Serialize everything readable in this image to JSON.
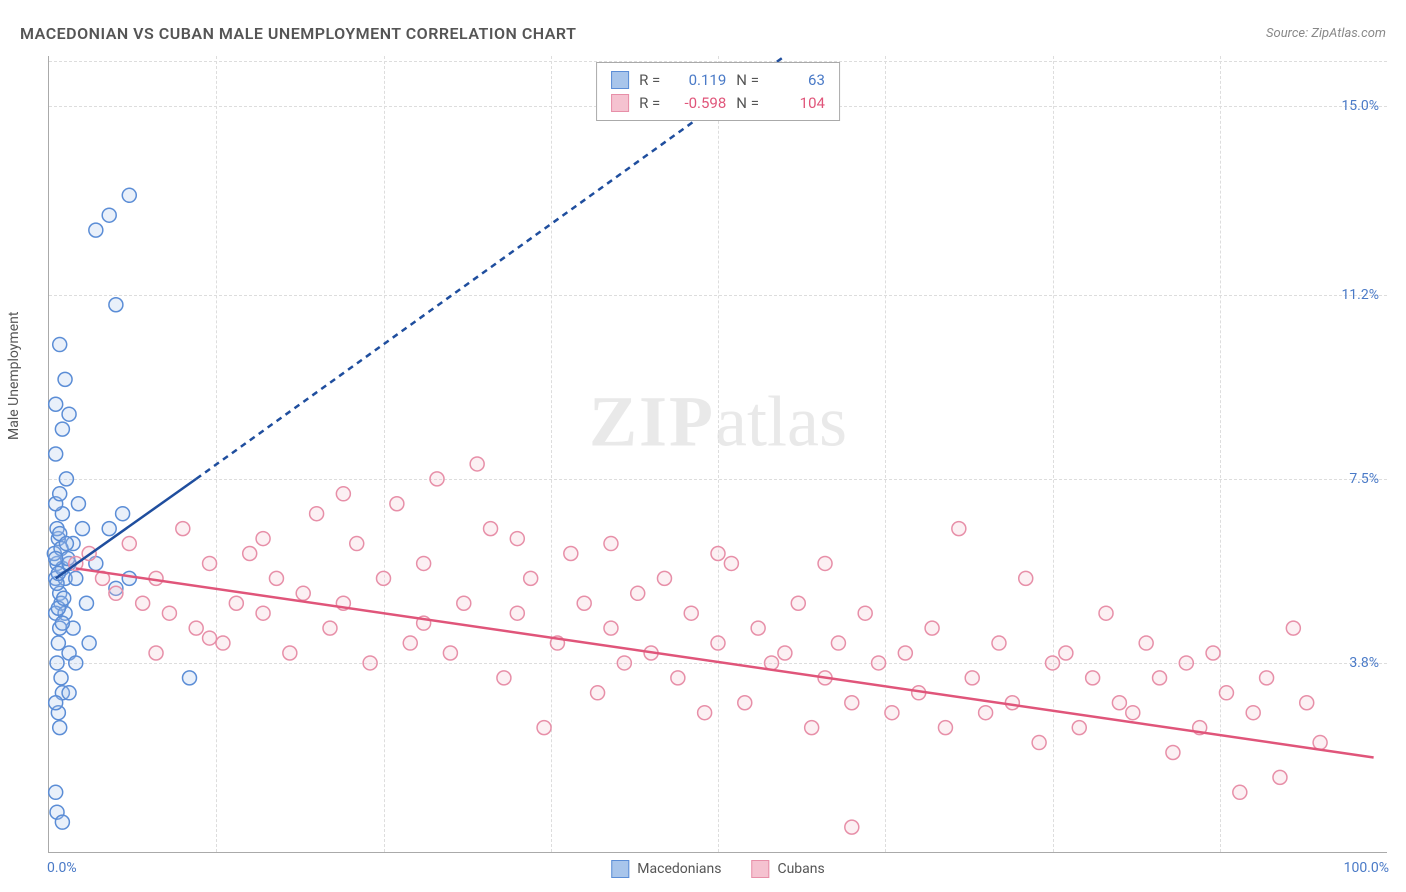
{
  "title": "MACEDONIAN VS CUBAN MALE UNEMPLOYMENT CORRELATION CHART",
  "source": "Source: ZipAtlas.com",
  "ylabel": "Male Unemployment",
  "watermark_bold": "ZIP",
  "watermark_light": "atlas",
  "chart": {
    "type": "scatter",
    "background_color": "#ffffff",
    "grid_color": "#dddddd",
    "axis_color": "#aaaaaa",
    "tick_color": "#4a7ac7",
    "title_color": "#555555",
    "title_fontsize": 16,
    "label_fontsize": 14,
    "xlim": [
      0,
      100
    ],
    "ylim": [
      0,
      16
    ],
    "x_ticks": [
      {
        "pos": 0,
        "label": "0.0%"
      },
      {
        "pos": 100,
        "label": "100.0%"
      }
    ],
    "y_ticks": [
      {
        "pos": 3.8,
        "label": "3.8%"
      },
      {
        "pos": 7.5,
        "label": "7.5%"
      },
      {
        "pos": 11.2,
        "label": "11.2%"
      },
      {
        "pos": 15.0,
        "label": "15.0%"
      }
    ],
    "x_grid_positions": [
      12.5,
      25,
      37.5,
      50,
      62.5,
      75,
      87.5
    ],
    "y_grid_positions": [
      3.8,
      7.5,
      11.2,
      15.0,
      15.9
    ],
    "marker_radius": 7,
    "marker_stroke_width": 1.5,
    "marker_fill_opacity": 0.25,
    "trend_line_width": 2.5,
    "trend_dash": "6,5"
  },
  "series": {
    "macedonians": {
      "label": "Macedonians",
      "color_stroke": "#5b8dd6",
      "color_fill": "#a8c5eb",
      "trend_color": "#1f4e9e",
      "R": "0.119",
      "N": "63",
      "trend_solid": {
        "x1": 0.5,
        "y1": 5.5,
        "x2": 11,
        "y2": 7.5
      },
      "trend_dashed": {
        "x1": 11,
        "y1": 7.5,
        "x2": 55,
        "y2": 16
      },
      "points": [
        [
          0.5,
          5.5
        ],
        [
          0.6,
          5.8
        ],
        [
          0.8,
          5.2
        ],
        [
          0.4,
          6.0
        ],
        [
          1.0,
          5.7
        ],
        [
          0.7,
          6.3
        ],
        [
          0.9,
          5.0
        ],
        [
          0.5,
          4.8
        ],
        [
          1.2,
          5.5
        ],
        [
          0.6,
          6.5
        ],
        [
          1.5,
          5.8
        ],
        [
          0.8,
          4.5
        ],
        [
          1.0,
          6.8
        ],
        [
          0.7,
          4.2
        ],
        [
          1.8,
          6.2
        ],
        [
          2.0,
          5.5
        ],
        [
          0.5,
          7.0
        ],
        [
          1.2,
          4.8
        ],
        [
          0.9,
          3.5
        ],
        [
          1.5,
          4.0
        ],
        [
          0.6,
          3.8
        ],
        [
          2.5,
          6.5
        ],
        [
          0.8,
          7.2
        ],
        [
          1.0,
          3.2
        ],
        [
          1.3,
          7.5
        ],
        [
          2.2,
          7.0
        ],
        [
          0.5,
          8.0
        ],
        [
          1.8,
          4.5
        ],
        [
          0.7,
          2.8
        ],
        [
          1.0,
          8.5
        ],
        [
          0.5,
          9.0
        ],
        [
          1.5,
          8.8
        ],
        [
          0.8,
          2.5
        ],
        [
          2.8,
          5.0
        ],
        [
          3.5,
          5.8
        ],
        [
          0.6,
          0.8
        ],
        [
          1.0,
          0.6
        ],
        [
          0.5,
          1.2
        ],
        [
          1.2,
          9.5
        ],
        [
          5.0,
          5.3
        ],
        [
          0.8,
          10.2
        ],
        [
          4.5,
          6.5
        ],
        [
          5.5,
          6.8
        ],
        [
          6.0,
          5.5
        ],
        [
          0.5,
          3.0
        ],
        [
          1.5,
          3.2
        ],
        [
          2.0,
          3.8
        ],
        [
          3.0,
          4.2
        ],
        [
          10.5,
          3.5
        ],
        [
          0.7,
          4.9
        ],
        [
          1.1,
          5.1
        ],
        [
          0.9,
          6.1
        ],
        [
          1.4,
          5.9
        ],
        [
          0.6,
          5.4
        ],
        [
          0.8,
          6.4
        ],
        [
          1.0,
          4.6
        ],
        [
          0.5,
          5.9
        ],
        [
          1.3,
          6.2
        ],
        [
          0.7,
          5.6
        ],
        [
          3.5,
          12.5
        ],
        [
          4.5,
          12.8
        ],
        [
          6.0,
          13.2
        ],
        [
          5.0,
          11.0
        ]
      ]
    },
    "cubans": {
      "label": "Cubans",
      "color_stroke": "#e78fa8",
      "color_fill": "#f5c2d0",
      "trend_color": "#e0557a",
      "R": "-0.598",
      "N": "104",
      "trend_solid": {
        "x1": 2,
        "y1": 5.7,
        "x2": 99,
        "y2": 1.9
      },
      "points": [
        [
          2,
          5.8
        ],
        [
          3,
          6.0
        ],
        [
          4,
          5.5
        ],
        [
          5,
          5.2
        ],
        [
          6,
          6.2
        ],
        [
          7,
          5.0
        ],
        [
          8,
          5.5
        ],
        [
          9,
          4.8
        ],
        [
          10,
          6.5
        ],
        [
          11,
          4.5
        ],
        [
          12,
          5.8
        ],
        [
          13,
          4.2
        ],
        [
          14,
          5.0
        ],
        [
          15,
          6.0
        ],
        [
          16,
          4.8
        ],
        [
          17,
          5.5
        ],
        [
          18,
          4.0
        ],
        [
          19,
          5.2
        ],
        [
          20,
          6.8
        ],
        [
          21,
          4.5
        ],
        [
          22,
          5.0
        ],
        [
          23,
          6.2
        ],
        [
          24,
          3.8
        ],
        [
          25,
          5.5
        ],
        [
          26,
          7.0
        ],
        [
          27,
          4.2
        ],
        [
          28,
          5.8
        ],
        [
          29,
          7.5
        ],
        [
          30,
          4.0
        ],
        [
          31,
          5.0
        ],
        [
          32,
          7.8
        ],
        [
          33,
          6.5
        ],
        [
          34,
          3.5
        ],
        [
          35,
          4.8
        ],
        [
          36,
          5.5
        ],
        [
          37,
          2.5
        ],
        [
          38,
          4.2
        ],
        [
          39,
          6.0
        ],
        [
          40,
          5.0
        ],
        [
          41,
          3.2
        ],
        [
          42,
          4.5
        ],
        [
          43,
          3.8
        ],
        [
          44,
          5.2
        ],
        [
          45,
          4.0
        ],
        [
          46,
          5.5
        ],
        [
          47,
          3.5
        ],
        [
          48,
          4.8
        ],
        [
          49,
          2.8
        ],
        [
          50,
          4.2
        ],
        [
          51,
          5.8
        ],
        [
          52,
          3.0
        ],
        [
          53,
          4.5
        ],
        [
          54,
          3.8
        ],
        [
          55,
          4.0
        ],
        [
          56,
          5.0
        ],
        [
          57,
          2.5
        ],
        [
          58,
          3.5
        ],
        [
          59,
          4.2
        ],
        [
          60,
          3.0
        ],
        [
          61,
          4.8
        ],
        [
          62,
          3.8
        ],
        [
          63,
          2.8
        ],
        [
          64,
          4.0
        ],
        [
          65,
          3.2
        ],
        [
          66,
          4.5
        ],
        [
          67,
          2.5
        ],
        [
          68,
          6.5
        ],
        [
          69,
          3.5
        ],
        [
          70,
          2.8
        ],
        [
          71,
          4.2
        ],
        [
          72,
          3.0
        ],
        [
          73,
          5.5
        ],
        [
          74,
          2.2
        ],
        [
          75,
          3.8
        ],
        [
          76,
          4.0
        ],
        [
          77,
          2.5
        ],
        [
          78,
          3.5
        ],
        [
          79,
          4.8
        ],
        [
          80,
          3.0
        ],
        [
          81,
          2.8
        ],
        [
          82,
          4.2
        ],
        [
          83,
          3.5
        ],
        [
          84,
          2.0
        ],
        [
          85,
          3.8
        ],
        [
          86,
          2.5
        ],
        [
          87,
          4.0
        ],
        [
          88,
          3.2
        ],
        [
          89,
          1.2
        ],
        [
          90,
          2.8
        ],
        [
          91,
          3.5
        ],
        [
          92,
          1.5
        ],
        [
          93,
          4.5
        ],
        [
          94,
          3.0
        ],
        [
          95,
          2.2
        ],
        [
          60,
          0.5
        ],
        [
          8,
          4.0
        ],
        [
          12,
          4.3
        ],
        [
          16,
          6.3
        ],
        [
          22,
          7.2
        ],
        [
          28,
          4.6
        ],
        [
          35,
          6.3
        ],
        [
          42,
          6.2
        ],
        [
          50,
          6.0
        ],
        [
          58,
          5.8
        ]
      ]
    }
  }
}
